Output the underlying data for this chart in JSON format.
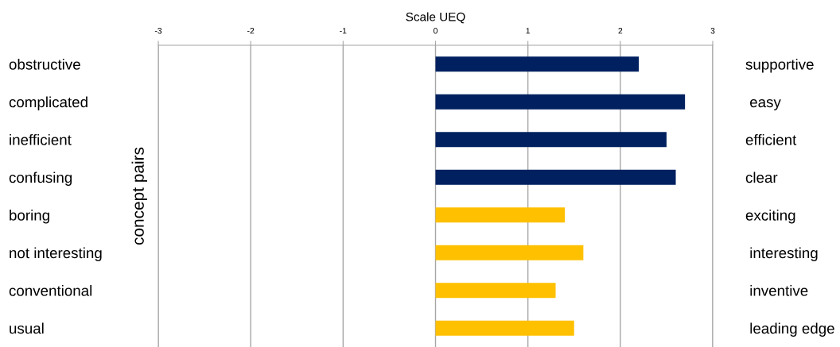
{
  "chart_data": {
    "type": "bar",
    "orientation": "horizontal",
    "categories": [
      "obstructive",
      "complicated",
      "inefficient",
      "confusing",
      "boring",
      "not interesting",
      "conventional",
      "usual"
    ],
    "y2_categories": [
      "supportive",
      " easy",
      "efficient",
      "clear",
      "exciting",
      " interesting",
      " inventive",
      " leading edge"
    ],
    "values": [
      2.2,
      2.7,
      2.5,
      2.6,
      1.4,
      1.6,
      1.3,
      1.5
    ],
    "colors": [
      "#002060",
      "#002060",
      "#002060",
      "#002060",
      "#ffc000",
      "#ffc000",
      "#ffc000",
      "#ffc000"
    ],
    "xlabel": "Scale UEQ",
    "ylabel": "concept pairs",
    "xlim": [
      -3,
      3
    ],
    "xticks": [
      -3,
      -2,
      -1,
      0,
      1,
      2,
      3
    ],
    "grid": "x"
  }
}
